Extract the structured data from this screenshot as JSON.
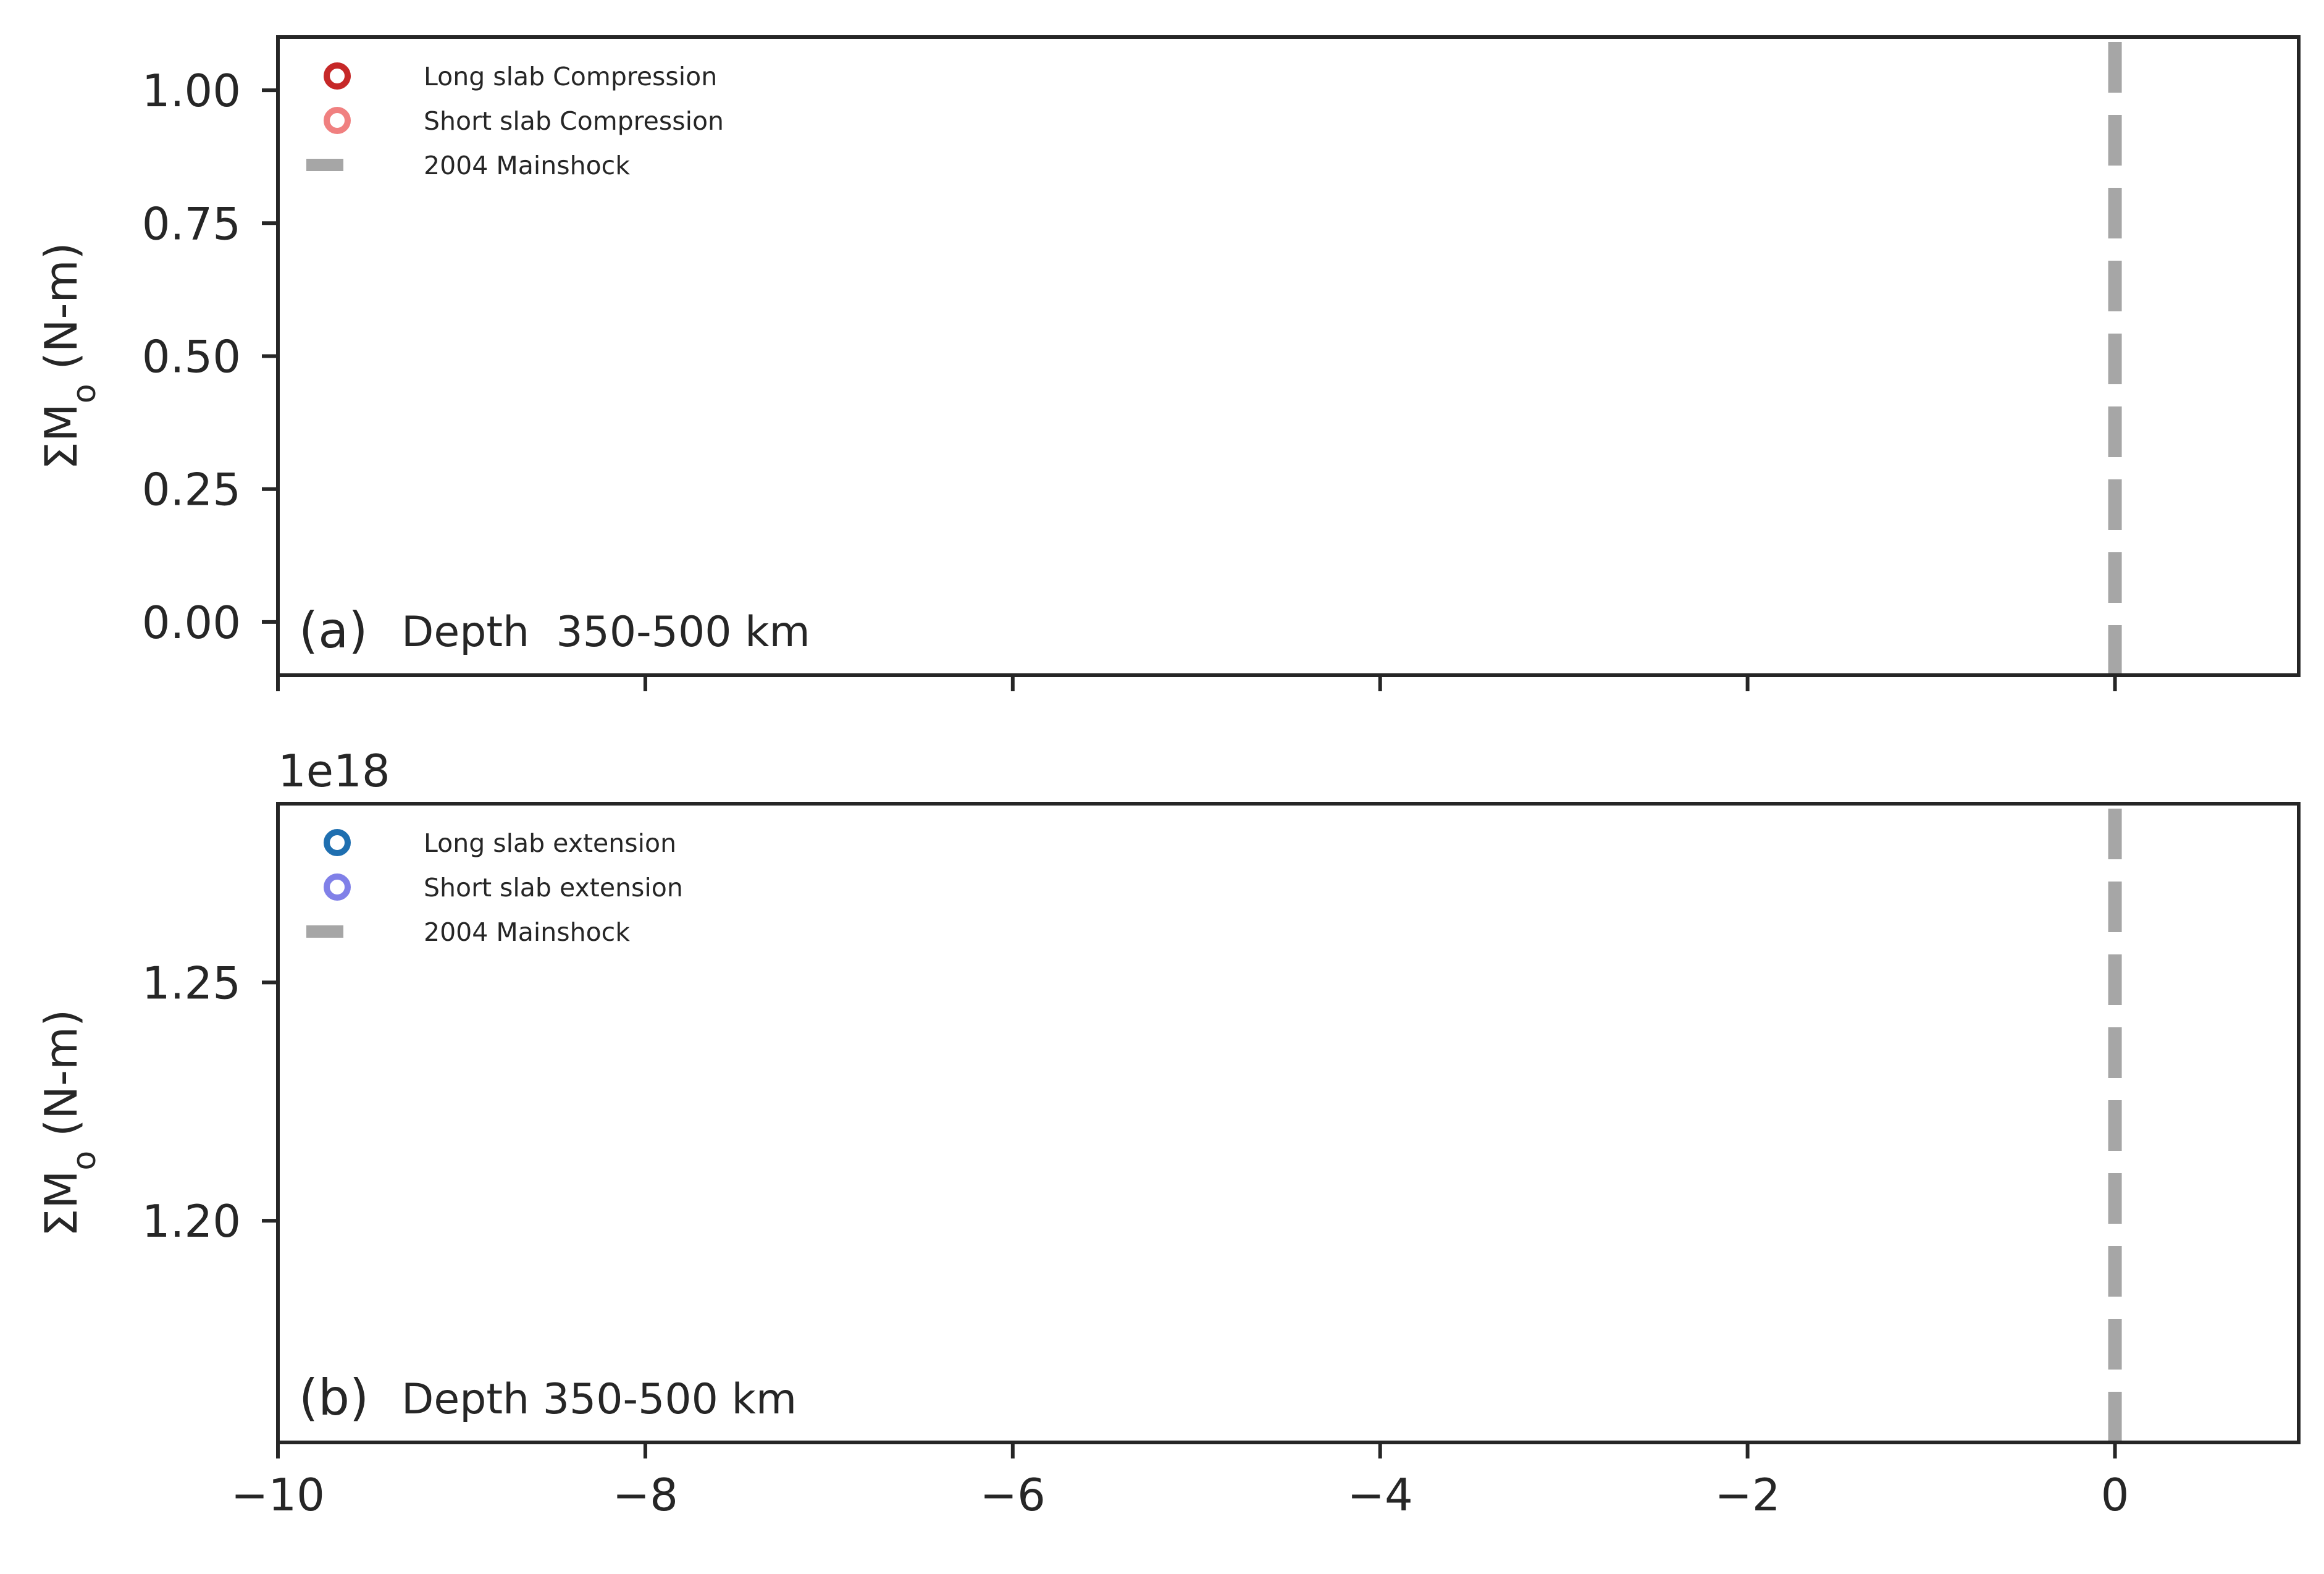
{
  "chart_data": [
    {
      "type": "scatter",
      "panel_tag": "(a)",
      "panel_text": "Depth  350-500 km",
      "ylabel": "ΣM_o (N-m)",
      "ylabel_main": "ΣM",
      "ylabel_sub": "o",
      "ylabel_tail": " (N-m)",
      "xlim": [
        -10,
        1
      ],
      "ylim": [
        -0.1,
        1.1
      ],
      "x_ticks": [
        -10,
        -8,
        -6,
        -4,
        -2,
        0
      ],
      "x_tick_labels": [
        "",
        "",
        "",
        "",
        "",
        ""
      ],
      "y_ticks": [
        0.0,
        0.25,
        0.5,
        0.75,
        1.0
      ],
      "y_tick_labels": [
        "0.00",
        "0.25",
        "0.50",
        "0.75",
        "1.00"
      ],
      "offset_label": "",
      "grid": false,
      "legend_position": "top-left",
      "mainshock_x": 0,
      "series": [
        {
          "name": "Long slab Compression",
          "marker": "open-circle",
          "color": "#c62828",
          "points": []
        },
        {
          "name": "Short slab Compression",
          "marker": "open-circle",
          "color": "#f08080",
          "points": []
        }
      ],
      "mainshock": {
        "name": "2004 Mainshock",
        "color": "#a6a6a6"
      }
    },
    {
      "type": "scatter",
      "panel_tag": "(b)",
      "panel_text": "Depth 350-500 km",
      "ylabel": "ΣM_o (N-m)",
      "ylabel_main": "ΣM",
      "ylabel_sub": "o",
      "ylabel_tail": " (N-m)",
      "xlim": [
        -10,
        1
      ],
      "ylim": [
        1.1535,
        1.2875
      ],
      "x_ticks": [
        -10,
        -8,
        -6,
        -4,
        -2,
        0
      ],
      "x_tick_labels": [
        "−10",
        "−8",
        "−6",
        "−4",
        "−2",
        "0"
      ],
      "y_ticks": [
        1.2,
        1.25
      ],
      "y_tick_labels": [
        "1.20",
        "1.25"
      ],
      "offset_label": "1e18",
      "grid": false,
      "legend_position": "top-left",
      "mainshock_x": 0,
      "series": [
        {
          "name": "Long slab extension",
          "marker": "open-circle",
          "color": "#1f6fb0",
          "points": []
        },
        {
          "name": "Short slab extension",
          "marker": "open-circle",
          "color": "#8080e8",
          "points": []
        }
      ],
      "mainshock": {
        "name": "2004 Mainshock",
        "color": "#a6a6a6"
      }
    }
  ]
}
